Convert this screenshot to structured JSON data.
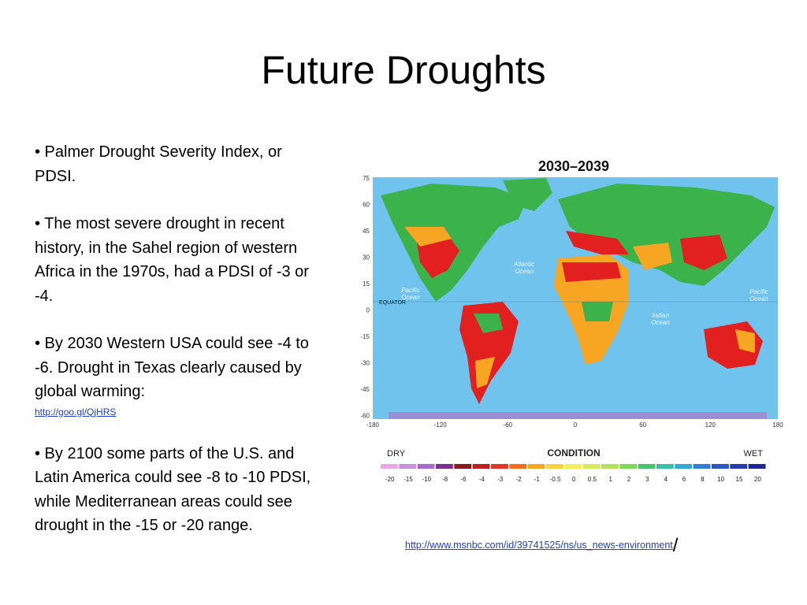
{
  "slide": {
    "title": "Future Droughts",
    "bullets": [
      {
        "text": "• Palmer Drought Severity Index, or PDSI."
      },
      {
        "text": "• The most severe drought in recent history, in the Sahel region of western Africa in the 1970s, had a PDSI of -3 or -4."
      },
      {
        "text": "• By 2030 Western USA could see -4 to -6. Drought in Texas clearly caused by global warming:",
        "link": "http://goo.gl/QjHRS"
      },
      {
        "text": "• By 2100 some parts of the U.S. and Latin America could see -8 to -10 PDSI, while Mediterranean areas could see drought in the -15 or -20 range."
      }
    ],
    "source_link": "http://www.msnbc.com/id/39741525/ns/us_news-environment",
    "source_link_suffix": "/"
  },
  "map": {
    "title": "2030–2039",
    "lat_ticks": [
      "75",
      "60",
      "45",
      "30",
      "15",
      "0",
      "-15",
      "-30",
      "-45",
      "-60"
    ],
    "lon_ticks": [
      "-180",
      "-120",
      "-60",
      "0",
      "60",
      "120",
      "180"
    ],
    "equator_label": "EQUATOR",
    "ocean_labels": [
      "Pacific\nOcean",
      "Atlantic\nOcean",
      "Indian\nOcean",
      "Pacific\nOcean"
    ],
    "colors": {
      "ocean": "#6fc3ec",
      "land_wet": "#3cb34a",
      "land_dry": "#e32020"
    }
  },
  "legend": {
    "dry_label": "DRY",
    "condition_label": "CONDITION",
    "wet_label": "WET",
    "values": [
      "-20",
      "-15",
      "-10",
      "-8",
      "-6",
      "-4",
      "-3",
      "-2",
      "-1",
      "-0.5",
      "0",
      "0.5",
      "1",
      "2",
      "3",
      "4",
      "6",
      "8",
      "10",
      "15",
      "20"
    ],
    "colors": [
      "#e9a6e8",
      "#c98fe0",
      "#a66bd3",
      "#7b2f8f",
      "#8b1a1a",
      "#c01e1e",
      "#e53525",
      "#f2701c",
      "#f6a623",
      "#f7d23a",
      "#f3ef5a",
      "#d7ec5a",
      "#b4e25b",
      "#7ed957",
      "#46c46a",
      "#3bbfa8",
      "#34a6d8",
      "#2f7fd6",
      "#2a57c9",
      "#2639b0",
      "#1b2796"
    ]
  }
}
